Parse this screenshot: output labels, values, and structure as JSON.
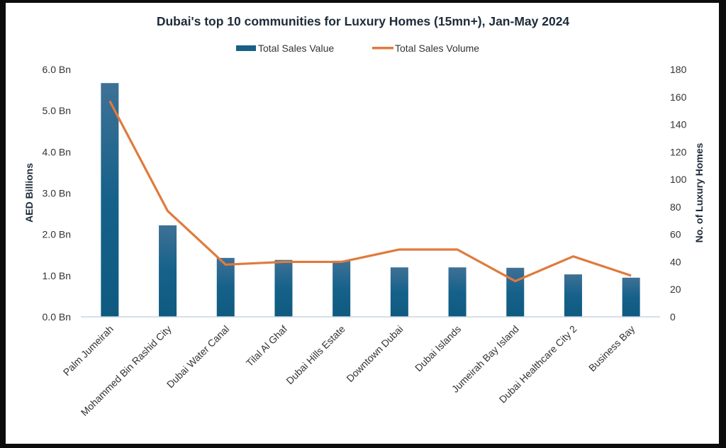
{
  "chart_data": {
    "type": "bar+line",
    "title": "Dubai's top 10 communities for Luxury Homes (15mn+), Jan-May 2024",
    "categories": [
      "Palm Jumeirah",
      "Mohammed Bin Rashid City",
      "Dubai Water Canal",
      "Tilal Al Ghaf",
      "Dubai Hills Estate",
      "Downtown Dubai",
      "Dubai Islands",
      "Jumeirah Bay Island",
      "Dubai Healthcare City 2",
      "Business Bay"
    ],
    "series": [
      {
        "name": "Total Sales Value",
        "kind": "bar",
        "axis": "left",
        "color": "#1a5f85",
        "values": [
          5.67,
          2.22,
          1.43,
          1.38,
          1.36,
          1.2,
          1.2,
          1.19,
          1.03,
          0.95
        ]
      },
      {
        "name": "Total Sales Volume",
        "kind": "line",
        "axis": "right",
        "color": "#e07a3c",
        "values": [
          157,
          77,
          38,
          40,
          40,
          49,
          49,
          26,
          44,
          30
        ]
      }
    ],
    "ylabel_left": "AED Billions",
    "ylabel_right": "No. of Luxury Homes",
    "ylim_left": [
      0,
      6
    ],
    "ylim_right": [
      0,
      180
    ],
    "yticks_left": [
      "0.0 Bn",
      "1.0 Bn",
      "2.0 Bn",
      "3.0 Bn",
      "4.0 Bn",
      "5.0 Bn",
      "6.0 Bn"
    ],
    "yticks_right": [
      "0",
      "20",
      "40",
      "60",
      "80",
      "100",
      "120",
      "140",
      "160",
      "180"
    ],
    "legend": "top",
    "grid": false
  }
}
